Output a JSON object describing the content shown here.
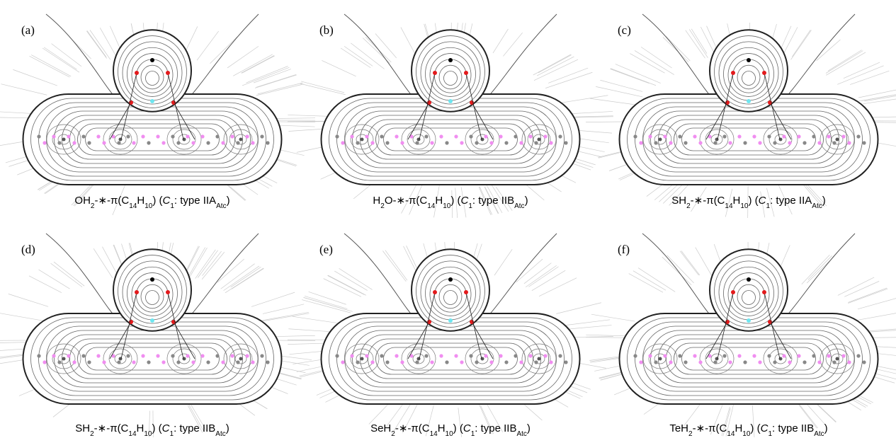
{
  "panels": [
    {
      "label": "(a)",
      "caption": [
        {
          "text": "OH"
        },
        {
          "text": "2",
          "style": "sub"
        },
        {
          "text": "-∗-π(C"
        },
        {
          "text": "14",
          "style": "sub"
        },
        {
          "text": "H"
        },
        {
          "text": "10",
          "style": "sub"
        },
        {
          "text": ") ("
        },
        {
          "text": "C",
          "style": "italic"
        },
        {
          "text": "1",
          "style": "sub"
        },
        {
          "text": ": type IIA"
        },
        {
          "text": "Atc",
          "style": "sub"
        },
        {
          "text": ")"
        }
      ]
    },
    {
      "label": "(b)",
      "caption": [
        {
          "text": "H"
        },
        {
          "text": "2",
          "style": "sub"
        },
        {
          "text": "O-∗-π(C"
        },
        {
          "text": "14",
          "style": "sub"
        },
        {
          "text": "H"
        },
        {
          "text": "10",
          "style": "sub"
        },
        {
          "text": ") ("
        },
        {
          "text": "C",
          "style": "italic"
        },
        {
          "text": "1",
          "style": "sub"
        },
        {
          "text": ": type IIB"
        },
        {
          "text": "Atc",
          "style": "sub"
        },
        {
          "text": ")"
        }
      ]
    },
    {
      "label": "(c)",
      "caption": [
        {
          "text": "SH"
        },
        {
          "text": "2",
          "style": "sub"
        },
        {
          "text": "-∗-π(C"
        },
        {
          "text": "14",
          "style": "sub"
        },
        {
          "text": "H"
        },
        {
          "text": "10",
          "style": "sub"
        },
        {
          "text": ") ("
        },
        {
          "text": "C",
          "style": "italic"
        },
        {
          "text": "1",
          "style": "sub"
        },
        {
          "text": ": type IIA"
        },
        {
          "text": "Atc",
          "style": "sub"
        },
        {
          "text": ")"
        }
      ]
    },
    {
      "label": "(d)",
      "caption": [
        {
          "text": "SH"
        },
        {
          "text": "2",
          "style": "sub"
        },
        {
          "text": "-∗-π(C"
        },
        {
          "text": "14",
          "style": "sub"
        },
        {
          "text": "H"
        },
        {
          "text": "10",
          "style": "sub"
        },
        {
          "text": ") ("
        },
        {
          "text": "C",
          "style": "italic"
        },
        {
          "text": "1",
          "style": "sub"
        },
        {
          "text": ": type IIB"
        },
        {
          "text": "Atc",
          "style": "sub"
        },
        {
          "text": ")"
        }
      ]
    },
    {
      "label": "(e)",
      "caption": [
        {
          "text": "SeH"
        },
        {
          "text": "2",
          "style": "sub"
        },
        {
          "text": "-∗-π(C"
        },
        {
          "text": "14",
          "style": "sub"
        },
        {
          "text": "H"
        },
        {
          "text": "10",
          "style": "sub"
        },
        {
          "text": ") ("
        },
        {
          "text": "C",
          "style": "italic"
        },
        {
          "text": "1",
          "style": "sub"
        },
        {
          "text": ": type IIB"
        },
        {
          "text": "Atc",
          "style": "sub"
        },
        {
          "text": ")"
        }
      ]
    },
    {
      "label": "(f)",
      "caption": [
        {
          "text": "TeH"
        },
        {
          "text": "2",
          "style": "sub"
        },
        {
          "text": "-∗-π(C"
        },
        {
          "text": "14",
          "style": "sub"
        },
        {
          "text": "H"
        },
        {
          "text": "10",
          "style": "sub"
        },
        {
          "text": ") ("
        },
        {
          "text": "C",
          "style": "italic"
        },
        {
          "text": "1",
          "style": "sub"
        },
        {
          "text": ": type IIB"
        },
        {
          "text": "Atc",
          "style": "sub"
        },
        {
          "text": ")"
        }
      ]
    }
  ]
}
